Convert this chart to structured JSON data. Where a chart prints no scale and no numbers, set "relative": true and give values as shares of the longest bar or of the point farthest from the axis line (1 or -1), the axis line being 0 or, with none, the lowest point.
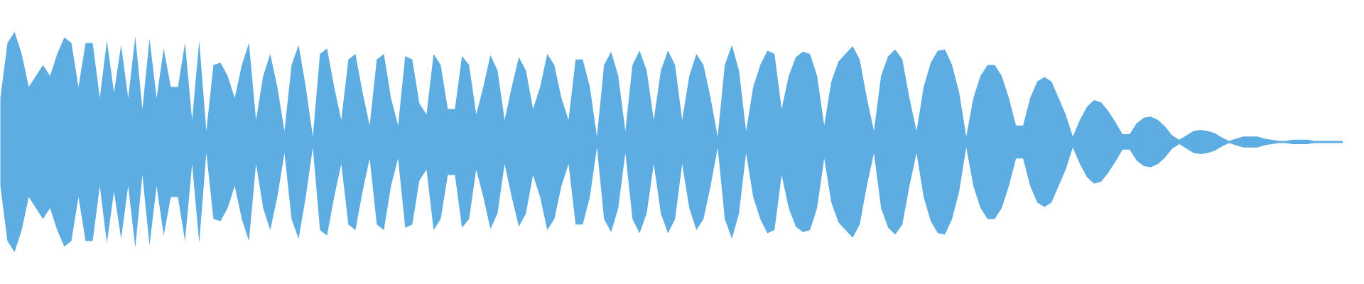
{
  "chart_data": {
    "type": "area",
    "relative": true,
    "ref_lines": [
      {
        "axis": "y",
        "value": 0,
        "color": "#5dade2"
      }
    ],
    "categories": [
      null,
      null,
      null,
      null,
      null,
      null,
      null,
      null,
      null,
      null,
      null,
      null,
      null,
      null,
      null,
      null,
      null,
      null,
      null,
      null,
      null,
      null,
      null,
      null,
      null,
      null,
      null,
      null,
      null,
      null,
      null,
      null,
      null,
      null,
      null,
      null,
      null,
      null,
      null,
      null,
      null,
      null,
      null,
      null,
      null,
      null,
      null,
      null,
      null,
      null,
      null,
      null,
      null,
      null,
      null,
      null,
      null,
      null,
      null,
      null,
      null,
      null,
      null,
      null,
      null,
      null,
      null,
      null,
      null,
      null,
      null,
      null,
      null,
      null,
      null,
      null,
      null,
      null,
      null,
      null,
      null,
      null,
      null,
      null,
      null,
      null,
      null,
      null,
      null,
      null,
      null,
      null,
      null,
      null,
      null,
      null,
      null,
      null,
      null,
      null,
      null,
      null,
      null,
      null,
      null,
      null,
      null,
      null,
      null,
      null,
      null,
      null,
      null,
      null,
      null,
      null,
      null,
      null,
      null,
      null,
      null,
      null,
      null,
      null,
      null,
      null,
      null,
      null,
      null,
      null,
      null,
      null,
      null,
      null,
      null,
      null,
      null,
      null,
      null,
      null,
      null,
      null,
      null,
      null,
      null,
      null,
      null,
      null,
      null,
      null,
      null,
      null,
      null,
      null,
      null,
      null,
      null,
      null,
      null,
      null,
      null,
      null,
      null,
      null,
      null,
      null,
      null,
      null,
      null,
      null,
      null,
      null,
      null,
      null,
      null,
      null,
      null,
      null,
      null,
      null,
      null,
      null,
      null,
      null,
      null,
      null,
      null,
      null,
      null,
      null
    ],
    "series": [
      {
        "color": "#5dade2",
        "values": [
          0.4,
          0.9,
          1.0,
          0.8,
          0.5,
          0.6,
          0.7,
          0.6,
          0.8,
          0.95,
          0.9,
          0.5,
          0.9,
          0.9,
          0.4,
          0.92,
          0.45,
          0.88,
          0.4,
          0.96,
          0.3,
          0.94,
          0.4,
          0.85,
          0.5,
          0.5,
          0.9,
          0.2,
          0.92,
          0.1,
          0.7,
          0.72,
          0.6,
          0.4,
          0.7,
          0.9,
          0.2,
          0.6,
          0.8,
          0.5,
          0.1,
          0.7,
          0.88,
          0.5,
          0.05,
          0.8,
          0.85,
          0.5,
          0.2,
          0.75,
          0.8,
          0.45,
          0.15,
          0.75,
          0.8,
          0.4,
          0.15,
          0.78,
          0.75,
          0.35,
          0.25,
          0.8,
          0.7,
          0.3,
          0.3,
          0.78,
          0.7,
          0.25,
          0.5,
          0.79,
          0.65,
          0.2,
          0.5,
          0.77,
          0.65,
          0.3,
          0.5,
          0.8,
          0.7,
          0.4,
          0.2,
          0.75,
          0.75,
          0.5,
          0.05,
          0.7,
          0.82,
          0.6,
          0.1,
          0.7,
          0.83,
          0.65,
          0.2,
          0.65,
          0.83,
          0.7,
          0.2,
          0.6,
          0.8,
          0.7,
          0.4,
          0.05,
          0.7,
          0.88,
          0.65,
          0.1,
          0.5,
          0.7,
          0.83,
          0.8,
          0.3,
          0.6,
          0.77,
          0.82,
          0.8,
          0.6,
          0.15,
          0.55,
          0.73,
          0.8,
          0.87,
          0.75,
          0.4,
          0.1,
          0.6,
          0.78,
          0.84,
          0.75,
          0.4,
          0.1,
          0.5,
          0.72,
          0.83,
          0.84,
          0.7,
          0.45,
          0.05,
          0.4,
          0.6,
          0.7,
          0.7,
          0.6,
          0.4,
          0.15,
          0.15,
          0.4,
          0.55,
          0.59,
          0.55,
          0.4,
          0.25,
          0.05,
          0.2,
          0.32,
          0.38,
          0.36,
          0.28,
          0.18,
          0.07,
          0.07,
          0.17,
          0.22,
          0.23,
          0.2,
          0.14,
          0.06,
          0.02,
          0.06,
          0.1,
          0.11,
          0.1,
          0.08,
          0.04,
          0.01,
          0.03,
          0.05,
          0.05,
          0.05,
          0.03,
          0.02,
          0.01,
          0.01,
          0.02,
          0.02,
          0.02,
          0.01,
          0.01,
          0.01,
          0.01,
          0.01
        ]
      },
      {
        "color": "#5dade2",
        "values": [
          -0.4,
          -0.9,
          -1.0,
          -0.8,
          -0.5,
          -0.6,
          -0.7,
          -0.6,
          -0.8,
          -0.95,
          -0.9,
          -0.5,
          -0.9,
          -0.9,
          -0.4,
          -0.92,
          -0.45,
          -0.88,
          -0.4,
          -0.96,
          -0.3,
          -0.94,
          -0.4,
          -0.85,
          -0.5,
          -0.5,
          -0.9,
          -0.2,
          -0.92,
          -0.1,
          -0.7,
          -0.72,
          -0.6,
          -0.4,
          -0.7,
          -0.9,
          -0.2,
          -0.6,
          -0.8,
          -0.5,
          -0.1,
          -0.7,
          -0.88,
          -0.5,
          -0.05,
          -0.8,
          -0.85,
          -0.5,
          -0.2,
          -0.75,
          -0.8,
          -0.45,
          -0.15,
          -0.75,
          -0.8,
          -0.4,
          -0.15,
          -0.78,
          -0.75,
          -0.35,
          -0.25,
          -0.8,
          -0.7,
          -0.3,
          -0.3,
          -0.78,
          -0.7,
          -0.25,
          -0.5,
          -0.79,
          -0.65,
          -0.2,
          -0.5,
          -0.77,
          -0.65,
          -0.3,
          -0.5,
          -0.8,
          -0.7,
          -0.4,
          -0.2,
          -0.75,
          -0.75,
          -0.5,
          -0.05,
          -0.7,
          -0.82,
          -0.6,
          -0.1,
          -0.7,
          -0.83,
          -0.65,
          -0.2,
          -0.65,
          -0.83,
          -0.7,
          -0.2,
          -0.6,
          -0.8,
          -0.7,
          -0.4,
          -0.05,
          -0.7,
          -0.88,
          -0.65,
          -0.1,
          -0.5,
          -0.7,
          -0.83,
          -0.8,
          -0.3,
          -0.6,
          -0.77,
          -0.82,
          -0.8,
          -0.6,
          -0.15,
          -0.55,
          -0.73,
          -0.8,
          -0.87,
          -0.75,
          -0.4,
          -0.1,
          -0.6,
          -0.78,
          -0.84,
          -0.75,
          -0.4,
          -0.1,
          -0.5,
          -0.72,
          -0.83,
          -0.84,
          -0.7,
          -0.45,
          -0.05,
          -0.4,
          -0.6,
          -0.7,
          -0.7,
          -0.6,
          -0.4,
          -0.15,
          -0.15,
          -0.4,
          -0.55,
          -0.59,
          -0.55,
          -0.4,
          -0.25,
          -0.05,
          -0.2,
          -0.32,
          -0.38,
          -0.36,
          -0.28,
          -0.18,
          -0.07,
          -0.07,
          -0.17,
          -0.22,
          -0.23,
          -0.2,
          -0.14,
          -0.06,
          -0.02,
          -0.06,
          -0.1,
          -0.11,
          -0.1,
          -0.08,
          -0.04,
          -0.01,
          -0.03,
          -0.05,
          -0.05,
          -0.05,
          -0.03,
          -0.02,
          -0.01,
          -0.01,
          -0.02,
          -0.02,
          -0.02,
          -0.01,
          -0.01,
          -0.01,
          -0.01,
          -0.01
        ]
      }
    ]
  }
}
